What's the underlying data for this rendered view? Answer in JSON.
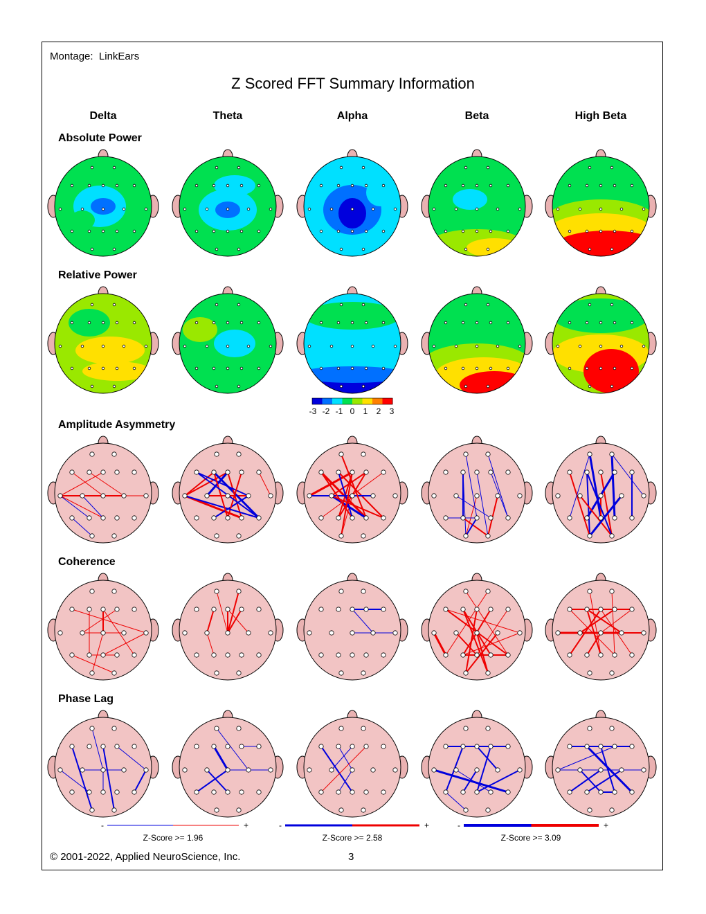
{
  "montage": {
    "label": "Montage:",
    "value": "LinkEars"
  },
  "title": "Z Scored FFT Summary Information",
  "bands": [
    "Delta",
    "Theta",
    "Alpha",
    "Beta",
    "High Beta"
  ],
  "sections": {
    "absolute_power": "Absolute Power",
    "relative_power": "Relative Power",
    "amplitude_asymmetry": "Amplitude Asymmetry",
    "coherence": "Coherence",
    "phase_lag": "Phase Lag"
  },
  "color_scale": {
    "ticks": [
      "-3",
      "-2",
      "-1",
      "0",
      "1",
      "2",
      "3"
    ],
    "colors": [
      "#0000dd",
      "#0070ff",
      "#00e0ff",
      "#00e050",
      "#9ae800",
      "#ffe000",
      "#ff8000",
      "#ff0000"
    ]
  },
  "zscore_legends": [
    {
      "label": "Z-Score >= 1.96",
      "minus": "-",
      "plus": "+"
    },
    {
      "label": "Z-Score >= 2.58",
      "minus": "-",
      "plus": "+"
    },
    {
      "label": "Z-Score >= 3.09",
      "minus": "-",
      "plus": "+"
    }
  ],
  "footer": {
    "copyright": "© 2001-2022, Applied NeuroScience, Inc.",
    "page": "3"
  }
}
